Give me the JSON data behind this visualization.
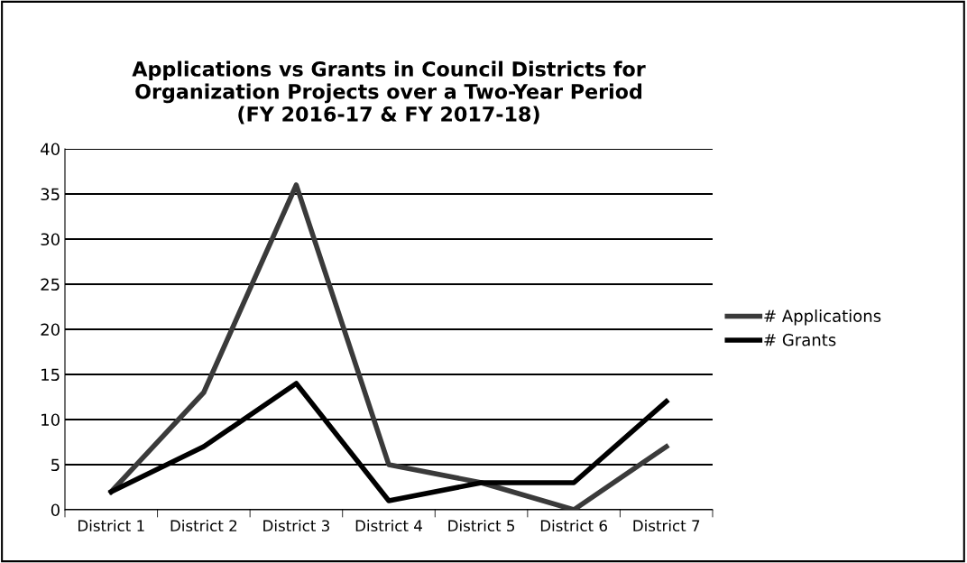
{
  "chart_data": {
    "type": "line",
    "title": "Applications vs Grants in Council Districts for\nOrganization Projects over a Two-Year Period\n(FY 2016-17 & FY 2017-18)",
    "categories": [
      "District 1",
      "District 2",
      "District 3",
      "District 4",
      "District 5",
      "District 6",
      "District 7"
    ],
    "series": [
      {
        "name": "# Applications",
        "color": "#3a3a3a",
        "values": [
          2,
          13,
          36,
          5,
          3,
          0,
          7
        ]
      },
      {
        "name": "# Grants",
        "color": "#000000",
        "values": [
          2,
          7,
          14,
          1,
          3,
          3,
          12
        ]
      }
    ],
    "ylim": [
      0,
      40
    ],
    "yticks": [
      0,
      5,
      10,
      15,
      20,
      25,
      30,
      35,
      40
    ],
    "grid": "y",
    "legend": "right",
    "marker": "none",
    "line_style": "solid"
  }
}
